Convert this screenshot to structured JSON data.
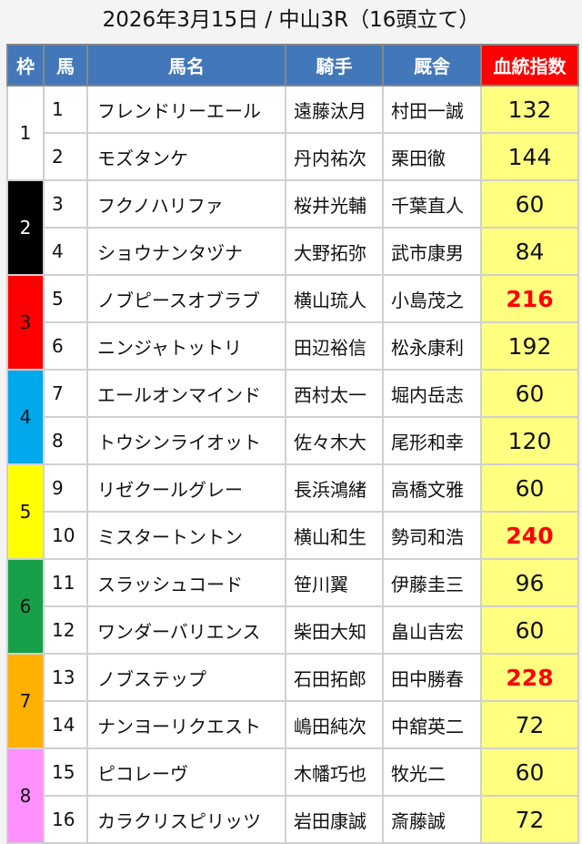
{
  "title": "2026年3月15日 / 中山3R（16頭立て）",
  "headers": {
    "waku": "枠",
    "umaban": "馬",
    "name": "馬名",
    "jockey": "騎手",
    "trainer": "厩舎",
    "index": "血統指数"
  },
  "colors": {
    "header": "#4277b9",
    "index_header": "#ff0000",
    "index_cell": "#ffff80",
    "highlight_text": "#ff0000"
  },
  "waku": [
    {
      "label": "1",
      "color": "#ffffff",
      "text": "#111111"
    },
    {
      "label": "2",
      "color": "#000000",
      "text": "#ffffff"
    },
    {
      "label": "3",
      "color": "#ff0000",
      "text": "#111111"
    },
    {
      "label": "4",
      "color": "#00a8ec",
      "text": "#111111"
    },
    {
      "label": "5",
      "color": "#ffff00",
      "text": "#111111"
    },
    {
      "label": "6",
      "color": "#16a04a",
      "text": "#111111"
    },
    {
      "label": "7",
      "color": "#ffb000",
      "text": "#111111"
    },
    {
      "label": "8",
      "color": "#ff90ff",
      "text": "#111111"
    }
  ],
  "rows": [
    {
      "num": "1",
      "name": "フレンドリーエール",
      "jockey": "遠藤汰月",
      "trainer": "村田一誠",
      "index": "132",
      "highlight": false
    },
    {
      "num": "2",
      "name": "モズタンケ",
      "jockey": "丹内祐次",
      "trainer": "栗田徹",
      "index": "144",
      "highlight": false
    },
    {
      "num": "3",
      "name": "フクノハリファ",
      "jockey": "桜井光輔",
      "trainer": "千葉直人",
      "index": "60",
      "highlight": false
    },
    {
      "num": "4",
      "name": "ショウナンタヅナ",
      "jockey": "大野拓弥",
      "trainer": "武市康男",
      "index": "84",
      "highlight": false
    },
    {
      "num": "5",
      "name": "ノブピースオブラブ",
      "jockey": "横山琉人",
      "trainer": "小島茂之",
      "index": "216",
      "highlight": true
    },
    {
      "num": "6",
      "name": "ニンジャトットリ",
      "jockey": "田辺裕信",
      "trainer": "松永康利",
      "index": "192",
      "highlight": false
    },
    {
      "num": "7",
      "name": "エールオンマインド",
      "jockey": "西村太一",
      "trainer": "堀内岳志",
      "index": "60",
      "highlight": false
    },
    {
      "num": "8",
      "name": "トウシンライオット",
      "jockey": "佐々木大",
      "trainer": "尾形和幸",
      "index": "120",
      "highlight": false
    },
    {
      "num": "9",
      "name": "リゼクールグレー",
      "jockey": "長浜鴻緒",
      "trainer": "高橋文雅",
      "index": "60",
      "highlight": false
    },
    {
      "num": "10",
      "name": "ミスタートントン",
      "jockey": "横山和生",
      "trainer": "勢司和浩",
      "index": "240",
      "highlight": true
    },
    {
      "num": "11",
      "name": "スラッシュコード",
      "jockey": "笹川翼",
      "trainer": "伊藤圭三",
      "index": "96",
      "highlight": false
    },
    {
      "num": "12",
      "name": "ワンダーバリエンス",
      "jockey": "柴田大知",
      "trainer": "畠山吉宏",
      "index": "60",
      "highlight": false
    },
    {
      "num": "13",
      "name": "ノブステップ",
      "jockey": "石田拓郎",
      "trainer": "田中勝春",
      "index": "228",
      "highlight": true
    },
    {
      "num": "14",
      "name": "ナンヨーリクエスト",
      "jockey": "嶋田純次",
      "trainer": "中舘英二",
      "index": "72",
      "highlight": false
    },
    {
      "num": "15",
      "name": "ピコレーヴ",
      "jockey": "木幡巧也",
      "trainer": "牧光二",
      "index": "60",
      "highlight": false
    },
    {
      "num": "16",
      "name": "カラクリスピリッツ",
      "jockey": "岩田康誠",
      "trainer": "斎藤誠",
      "index": "72",
      "highlight": false
    }
  ]
}
